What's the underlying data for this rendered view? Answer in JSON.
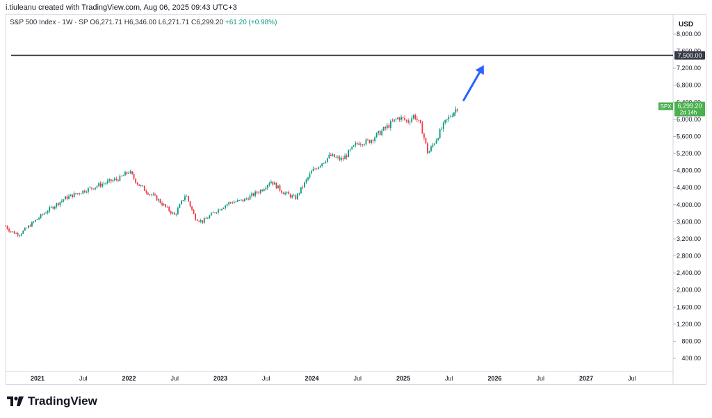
{
  "header": {
    "attribution": "i.tiuleanu created with TradingView.com, Aug 06, 2025 09:43 UTC+3"
  },
  "legend": {
    "symbol": "S&P 500 Index · 1W · SP",
    "open": "O6,271.71",
    "high": "H6,346.00",
    "low": "L6,271.71",
    "close": "C6,299.20",
    "change": "+61.20 (+0.98%)"
  },
  "brand": {
    "name": "TradingView"
  },
  "axis": {
    "currency": "USD"
  },
  "colors": {
    "up": "#089981",
    "down": "#f23645",
    "arrow": "#2962ff",
    "line": "#363a45",
    "tag": "#4caf50"
  },
  "chart_data": {
    "type": "candlestick",
    "title": "",
    "ylim": [
      0,
      8500
    ],
    "y_ticks": [
      400,
      800,
      1200,
      1600,
      2000,
      2400,
      2800,
      3200,
      3600,
      4000,
      4400,
      4800,
      5200,
      5600,
      6000,
      6400,
      6800,
      7200,
      7600,
      8000
    ],
    "y_tick_labels": [
      "400.00",
      "800.00",
      "1,200.00",
      "1,600.00",
      "2,000.00",
      "2,400.00",
      "2,800.00",
      "3,200.00",
      "3,600.00",
      "4,000.00",
      "4,400.00",
      "4,800.00",
      "5,200.00",
      "5,600.00",
      "6,000.00",
      "6,400.00",
      "6,800.00",
      "7,200.00",
      "7,600.00",
      "8,000.00"
    ],
    "x_ticks": [
      "2021",
      "Jul",
      "2022",
      "Jul",
      "2023",
      "Jul",
      "2024",
      "Jul",
      "2025",
      "Jul",
      "2026",
      "Jul",
      "2027",
      "Jul"
    ],
    "x_tick_dates": [
      2021.0,
      2021.5,
      2022.0,
      2022.5,
      2023.0,
      2023.5,
      2024.0,
      2024.5,
      2025.0,
      2025.5,
      2026.0,
      2026.5,
      2027.0,
      2027.5
    ],
    "x_range": [
      2020.65,
      2027.95
    ],
    "price_path": [
      [
        2020.65,
        3500
      ],
      [
        2020.7,
        3380
      ],
      [
        2020.8,
        3300
      ],
      [
        2020.95,
        3580
      ],
      [
        2021.1,
        3850
      ],
      [
        2021.3,
        4150
      ],
      [
        2021.5,
        4320
      ],
      [
        2021.7,
        4480
      ],
      [
        2021.9,
        4620
      ],
      [
        2022.0,
        4780
      ],
      [
        2022.1,
        4480
      ],
      [
        2022.2,
        4300
      ],
      [
        2022.3,
        4150
      ],
      [
        2022.42,
        3900
      ],
      [
        2022.5,
        3750
      ],
      [
        2022.62,
        4250
      ],
      [
        2022.72,
        3700
      ],
      [
        2022.8,
        3600
      ],
      [
        2022.95,
        3850
      ],
      [
        2023.1,
        4050
      ],
      [
        2023.25,
        4100
      ],
      [
        2023.45,
        4350
      ],
      [
        2023.55,
        4560
      ],
      [
        2023.68,
        4300
      ],
      [
        2023.82,
        4150
      ],
      [
        2024.0,
        4780
      ],
      [
        2024.2,
        5150
      ],
      [
        2024.33,
        5050
      ],
      [
        2024.5,
        5450
      ],
      [
        2024.62,
        5480
      ],
      [
        2024.78,
        5750
      ],
      [
        2024.95,
        6050
      ],
      [
        2025.05,
        5950
      ],
      [
        2025.12,
        6100
      ],
      [
        2025.2,
        5800
      ],
      [
        2025.27,
        5200
      ],
      [
        2025.35,
        5500
      ],
      [
        2025.45,
        5900
      ],
      [
        2025.52,
        6100
      ],
      [
        2025.6,
        6299.2
      ]
    ],
    "horizontal_line": {
      "value": 7500,
      "label": "7,500.00"
    },
    "last_price": {
      "symbol": "SPX",
      "value": 6299.2,
      "label": "6,299.20",
      "countdown": "2d 14h"
    },
    "arrow": {
      "from": [
        2025.66,
        6450
      ],
      "to": [
        2025.88,
        7270
      ]
    }
  }
}
